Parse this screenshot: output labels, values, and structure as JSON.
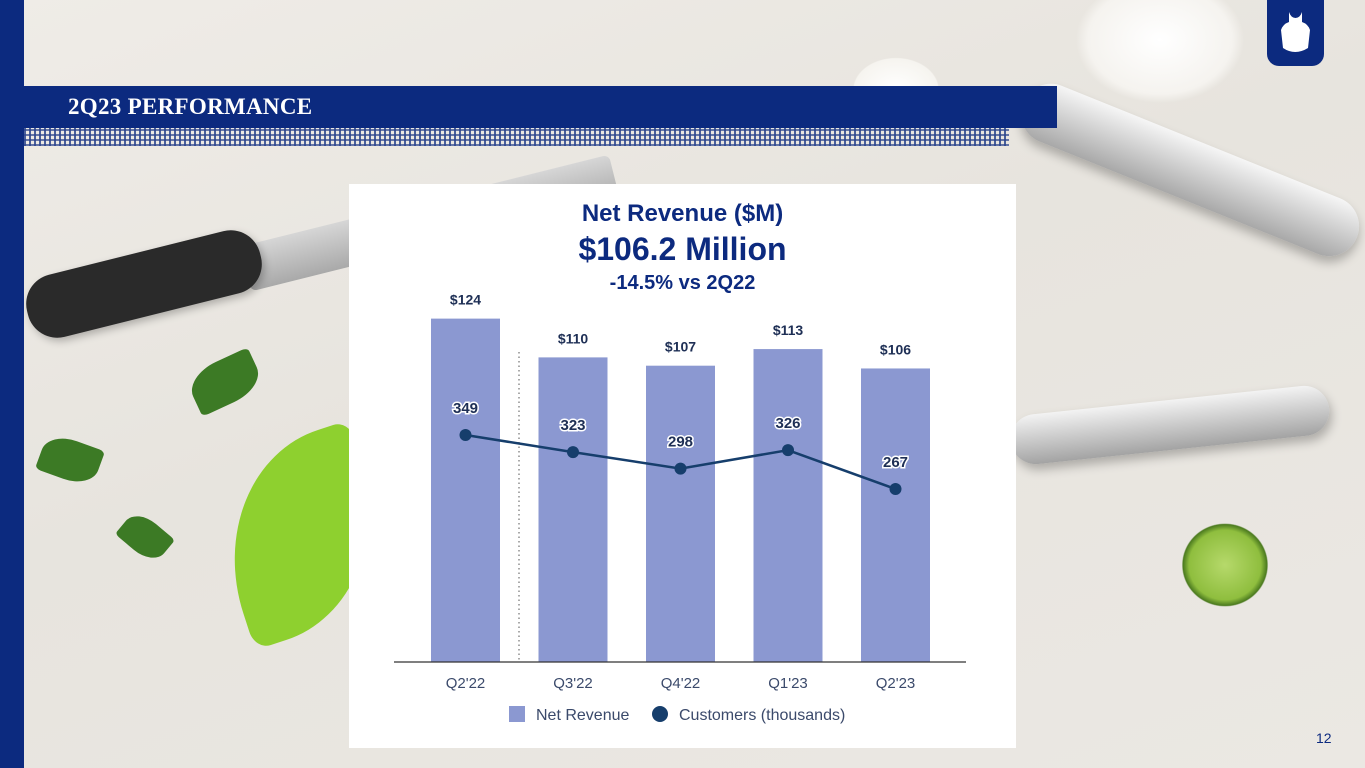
{
  "header": {
    "title": "2Q23 PERFORMANCE"
  },
  "page_number": "12",
  "chart_data": {
    "type": "bar",
    "title": "Net Revenue ($M)",
    "headline": "$106.2 Million",
    "subtitle": "-14.5% vs 2Q22",
    "categories": [
      "Q2'22",
      "Q3'22",
      "Q4'22",
      "Q1'23",
      "Q2'23"
    ],
    "series": [
      {
        "name": "Net Revenue",
        "type": "bar",
        "color": "#8b98d1",
        "values": [
          124,
          110,
          107,
          113,
          106
        ],
        "labels": [
          "$124",
          "$110",
          "$107",
          "$113",
          "$106"
        ]
      },
      {
        "name": "Customers (thousands)",
        "type": "line",
        "color": "#163e6c",
        "values": [
          349,
          323,
          298,
          326,
          267
        ],
        "labels": [
          "349",
          "323",
          "298",
          "326",
          "267"
        ]
      }
    ],
    "ylim": [
      0,
      130
    ],
    "legend": "bottom",
    "grid": false
  },
  "colors": {
    "brand": "#0c2a7f",
    "bar": "#8b98d1",
    "line": "#163e6c"
  }
}
